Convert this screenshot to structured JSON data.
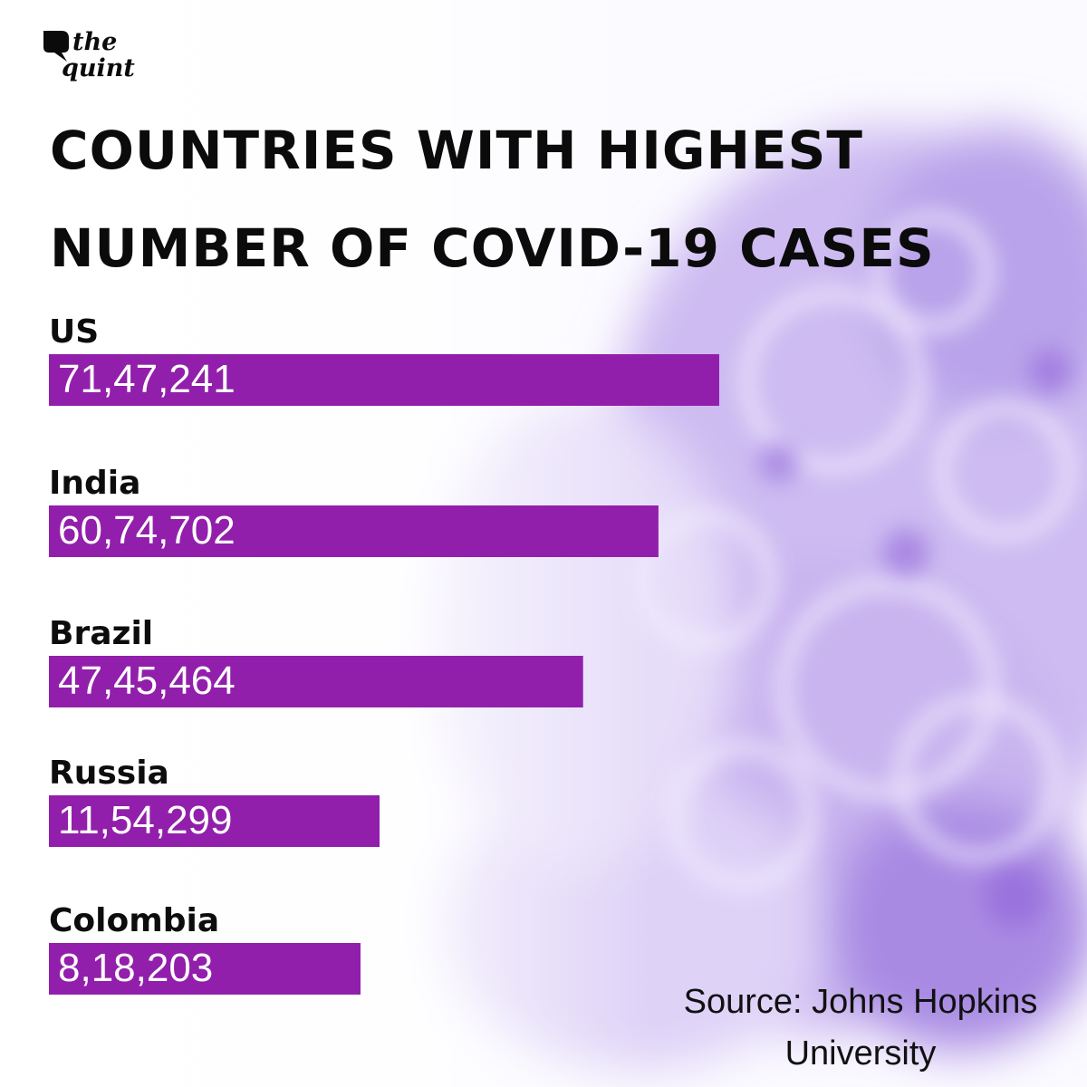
{
  "brand": {
    "line1": "the",
    "line2": "quint"
  },
  "title": {
    "line1": "COUNTRIES WITH HIGHEST",
    "line2": "NUMBER OF COVID-19 CASES"
  },
  "colors": {
    "bar": "#921fab",
    "bar_text": "#ffffff",
    "text": "#0d0d0d"
  },
  "chart_data": {
    "type": "bar",
    "orientation": "horizontal",
    "title": "COUNTRIES WITH HIGHEST NUMBER OF COVID-19 CASES",
    "categories": [
      "US",
      "India",
      "Brazil",
      "Russia",
      "Colombia"
    ],
    "values": [
      7147241,
      6074702,
      4745464,
      1154299,
      818203
    ],
    "value_labels": [
      "71,47,241",
      "60,74,702",
      "47,45,464",
      "11,54,299",
      "8,18,203"
    ],
    "xlabel": "",
    "ylabel": "",
    "grid": false,
    "legend": "none"
  },
  "source": {
    "line1": "Source: Johns Hopkins",
    "line2": "University"
  }
}
